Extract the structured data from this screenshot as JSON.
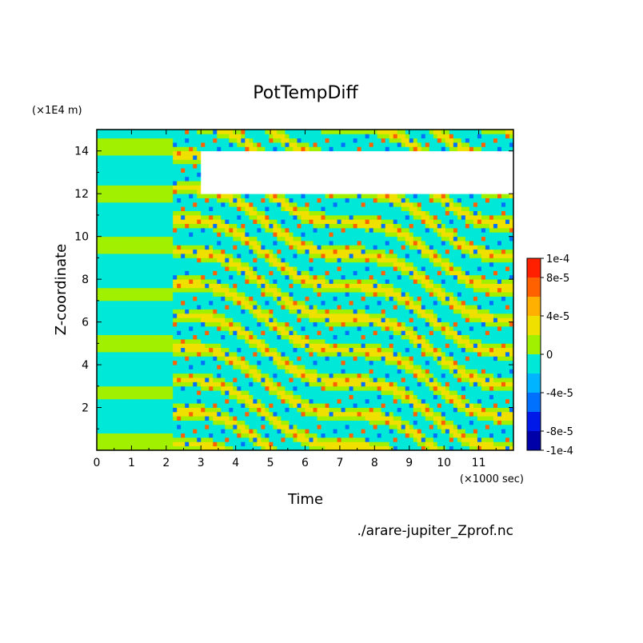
{
  "chart_data": {
    "type": "heatmap",
    "title": "PotTempDiff",
    "xlabel": "Time",
    "ylabel": "Z-coordinate",
    "x_unit_label": "(×1000 sec)",
    "y_unit_label": "(×1E4 m)",
    "xlim": [
      0,
      12
    ],
    "ylim": [
      0,
      15
    ],
    "x_ticks": [
      "0",
      "1",
      "2",
      "3",
      "4",
      "5",
      "6",
      "7",
      "8",
      "9",
      "10",
      "11"
    ],
    "y_ticks": [
      "2",
      "4",
      "6",
      "8",
      "10",
      "12",
      "14"
    ],
    "colorbar": {
      "levels": [
        -0.0001,
        -8e-05,
        -6e-05,
        -4e-05,
        -2e-05,
        0,
        2e-05,
        4e-05,
        6e-05,
        8e-05,
        0.0001
      ],
      "tick_labels": [
        "-1e-4",
        "-8e-5",
        "-4e-5",
        "0",
        "4e-5",
        "8e-5",
        "1e-4"
      ],
      "tick_values": [
        -0.0001,
        -8e-05,
        -4e-05,
        0,
        4e-05,
        8e-05,
        0.0001
      ],
      "colors": [
        "#0000a8",
        "#0018e8",
        "#0070ff",
        "#00b4ff",
        "#00e8d8",
        "#a0f000",
        "#f0e000",
        "#ffb000",
        "#ff6000",
        "#ff2000"
      ]
    },
    "features": {
      "background": "near-zero band pattern (cyan/green stripes)",
      "saturated_region": "white area near z=12–14 from t≈3–12"
    },
    "grid": false,
    "legend": "colorbar-right"
  },
  "footer": {
    "filename": "./arare-jupiter_Zprof.nc"
  },
  "colors": {
    "frame": "#000000",
    "background": "#ffffff"
  }
}
